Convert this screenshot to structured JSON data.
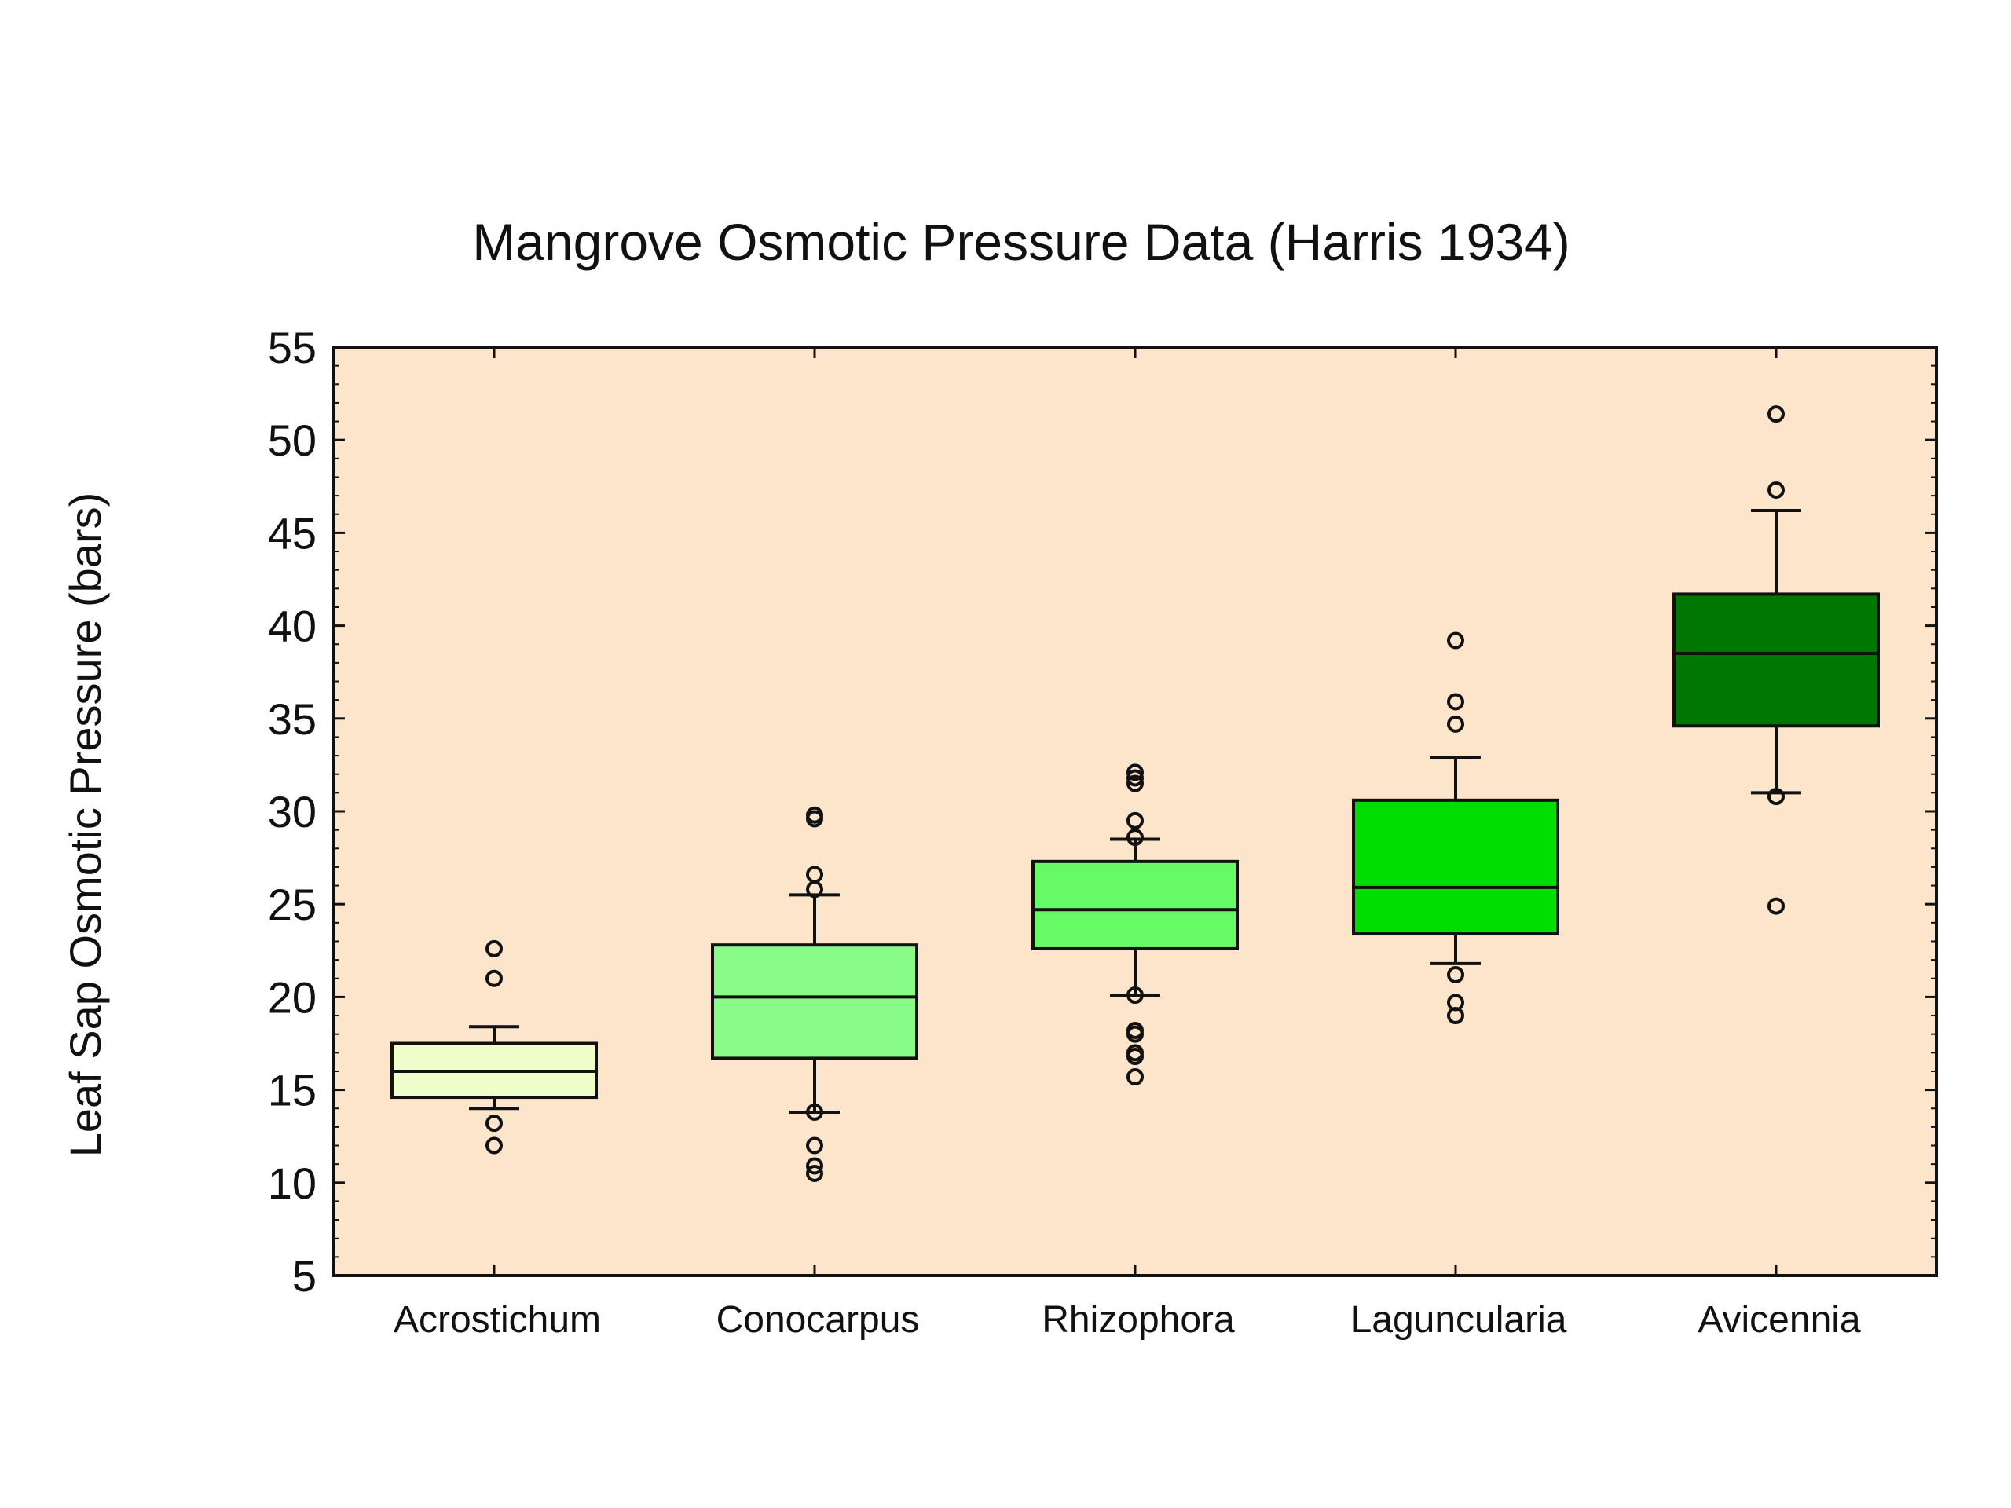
{
  "chart_data": {
    "type": "boxplot",
    "title": "Mangrove Osmotic Pressure Data (Harris 1934)",
    "xlabel": "",
    "ylabel": "Leaf Sap Osmotic Pressure (bars)",
    "ylim": [
      5,
      55
    ],
    "yticks": [
      "5",
      "10",
      "15",
      "20",
      "25",
      "30",
      "35",
      "40",
      "45",
      "50",
      "55"
    ],
    "grid": false,
    "plot_background": "#fde5cc",
    "categories": [
      "Acrostichum",
      "Conocarpus",
      "Rhizophora",
      "Laguncularia",
      "Avicennia"
    ],
    "series": [
      {
        "category": "Acrostichum",
        "whisker_low": 14.0,
        "q1": 14.6,
        "median": 16.0,
        "q3": 17.5,
        "whisker_high": 18.4,
        "outliers": [
          13.2,
          12.0,
          21.0,
          22.6
        ],
        "color": "#eeffcc"
      },
      {
        "category": "Conocarpus",
        "whisker_low": 13.8,
        "q1": 16.7,
        "median": 20.0,
        "q3": 22.8,
        "whisker_high": 25.5,
        "outliers": [
          13.8,
          12.0,
          10.9,
          10.5,
          25.8,
          26.6,
          29.6,
          29.8
        ],
        "color": "#88fb88"
      },
      {
        "category": "Rhizophora",
        "whisker_low": 20.1,
        "q1": 22.6,
        "median": 24.7,
        "q3": 27.3,
        "whisker_high": 28.5,
        "outliers": [
          20.1,
          18.2,
          18.0,
          17.0,
          16.8,
          15.7,
          28.6,
          29.5,
          31.5,
          31.8,
          32.1
        ],
        "color": "#66fa66"
      },
      {
        "category": "Laguncularia",
        "whisker_low": 21.8,
        "q1": 23.4,
        "median": 25.9,
        "q3": 30.6,
        "whisker_high": 32.9,
        "outliers": [
          21.2,
          19.7,
          19.0,
          34.7,
          35.9,
          39.2
        ],
        "color": "#00dd00"
      },
      {
        "category": "Avicennia",
        "whisker_low": 31.0,
        "q1": 34.6,
        "median": 38.5,
        "q3": 41.7,
        "whisker_high": 46.2,
        "outliers": [
          30.8,
          24.9,
          47.3,
          51.4
        ],
        "color": "#007700"
      }
    ]
  }
}
